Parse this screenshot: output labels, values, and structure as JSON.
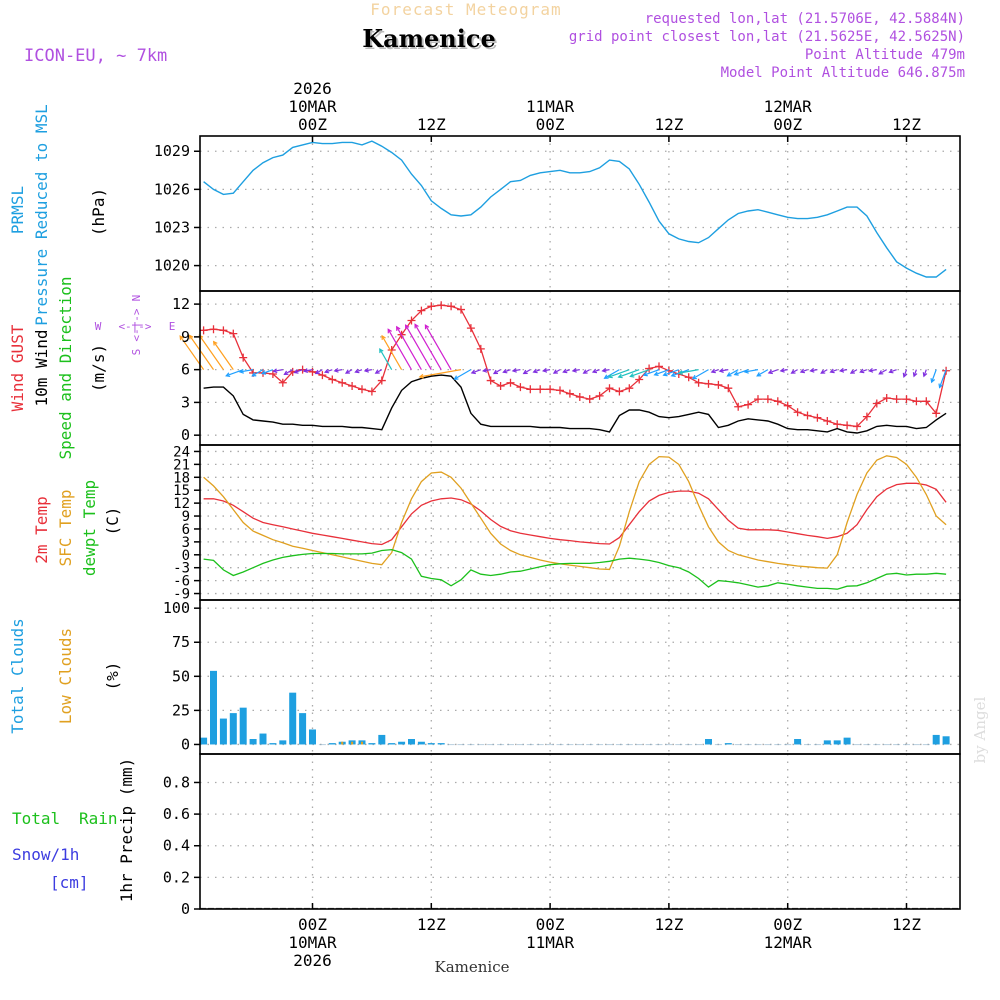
{
  "header": {
    "subtitle": "Forecast Meteogram",
    "title": "Kamenice",
    "model": "ICON-EU, ~ 7km",
    "requested": "requested lon,lat (21.5706E, 42.5884N)",
    "grid_point": "grid point closest lon,lat (21.5625E, 42.5625N)",
    "point_altitude": "Point Altitude 479m",
    "model_altitude": "Model Point Altitude 646.875m",
    "credit": "by Angel",
    "bottom_label": "Kamenice"
  },
  "time_axis": {
    "top": [
      {
        "t": 0,
        "lines": [
          "2026",
          "10MAR",
          "00Z"
        ]
      },
      {
        "t": 12,
        "lines": [
          "12Z"
        ]
      },
      {
        "t": 24,
        "lines": [
          "11MAR",
          "00Z"
        ]
      },
      {
        "t": 36,
        "lines": [
          "12Z"
        ]
      },
      {
        "t": 48,
        "lines": [
          "12MAR",
          "00Z"
        ]
      },
      {
        "t": 60,
        "lines": [
          "12Z"
        ]
      }
    ],
    "bottom": [
      {
        "t": 0,
        "lines": [
          "00Z",
          "10MAR",
          "2026"
        ]
      },
      {
        "t": 12,
        "lines": [
          "12Z"
        ]
      },
      {
        "t": 24,
        "lines": [
          "00Z",
          "11MAR"
        ]
      },
      {
        "t": 36,
        "lines": [
          "12Z"
        ]
      },
      {
        "t": 48,
        "lines": [
          "00Z",
          "12MAR"
        ]
      },
      {
        "t": 60,
        "lines": [
          "12Z"
        ]
      }
    ]
  },
  "panels": {
    "pressure": {
      "labels": [
        "PRMSL",
        "Pressure Reduced to MSL"
      ],
      "unit": "(hPa)",
      "line_color": "#1e9fe0"
    },
    "wind": {
      "labels": [
        "Wind GUST",
        "10m Wind",
        "Speed and Direction"
      ],
      "unit": "(m/s)",
      "compass": {
        "n": "N",
        "s": "S",
        "w": "W",
        "e": "E"
      },
      "gust_color": "#e8303a",
      "wind_color": "#000000"
    },
    "temp": {
      "labels": [
        "2m Temp",
        "SFC Temp",
        "dewpt Temp"
      ],
      "unit": "(C)",
      "temp_color": "#e8303a",
      "sfc_color": "#e0a020",
      "dew_color": "#1cc01c"
    },
    "clouds": {
      "labels": [
        "Total Clouds",
        "Low Clouds"
      ],
      "unit": "(%)",
      "total_color": "#1e9fe0",
      "low_color": "#e0a020"
    },
    "precip": {
      "labels": [
        "Total",
        "Rain",
        "Snow/1h",
        "[cm]"
      ],
      "ylabel": "1hr Precip (mm)",
      "rain_color": "#1cc01c",
      "snow_color": "#3c3ce0"
    }
  },
  "chart_data": [
    {
      "type": "line",
      "title": "PRMSL Pressure Reduced to MSL",
      "ylabel": "hPa",
      "x_unit": "hours from 10MAR 00Z",
      "ylim": [
        1018,
        1030.2
      ],
      "yticks": [
        1020,
        1023,
        1026,
        1029
      ],
      "x": [
        -11,
        -10,
        -9,
        -8,
        -7,
        -6,
        -5,
        -4,
        -3,
        -2,
        -1,
        0,
        1,
        2,
        3,
        4,
        5,
        6,
        7,
        8,
        9,
        10,
        11,
        12,
        13,
        14,
        15,
        16,
        17,
        18,
        19,
        20,
        21,
        22,
        23,
        24,
        25,
        26,
        27,
        28,
        29,
        30,
        31,
        32,
        33,
        34,
        35,
        36,
        37,
        38,
        39,
        40,
        41,
        42,
        43,
        44,
        45,
        46,
        47,
        48,
        49,
        50,
        51,
        52,
        53,
        54,
        55,
        56,
        57,
        58,
        59,
        60,
        61,
        62,
        63,
        64
      ],
      "series": [
        {
          "name": "PRMSL",
          "values": [
            1026.6,
            1026.0,
            1025.6,
            1025.7,
            1026.6,
            1027.5,
            1028.1,
            1028.5,
            1028.7,
            1029.3,
            1029.5,
            1029.7,
            1029.6,
            1029.6,
            1029.7,
            1029.7,
            1029.5,
            1029.8,
            1029.4,
            1028.9,
            1028.3,
            1027.2,
            1026.3,
            1025.1,
            1024.5,
            1024.0,
            1023.9,
            1024.0,
            1024.6,
            1025.4,
            1026.0,
            1026.6,
            1026.7,
            1027.1,
            1027.3,
            1027.4,
            1027.5,
            1027.3,
            1027.3,
            1027.4,
            1027.7,
            1028.3,
            1028.2,
            1027.6,
            1026.4,
            1025.0,
            1023.5,
            1022.5,
            1022.1,
            1021.9,
            1021.8,
            1022.2,
            1022.9,
            1023.6,
            1024.1,
            1024.3,
            1024.4,
            1024.2,
            1024.0,
            1023.8,
            1023.7,
            1023.7,
            1023.8,
            1024.0,
            1024.3,
            1024.6,
            1024.6,
            1023.9,
            1022.6,
            1021.4,
            1020.3,
            1019.8,
            1019.4,
            1019.1,
            1019.1,
            1019.7
          ]
        }
      ]
    },
    {
      "type": "line",
      "title": "Wind GUST / 10m Wind Speed and Direction",
      "ylabel": "m/s",
      "x_unit": "hours from 10MAR 00Z",
      "ylim": [
        -0.9,
        13.2
      ],
      "yticks": [
        0,
        3,
        6,
        9,
        12
      ],
      "x": [
        -11,
        -10,
        -9,
        -8,
        -7,
        -6,
        -5,
        -4,
        -3,
        -2,
        -1,
        0,
        1,
        2,
        3,
        4,
        5,
        6,
        7,
        8,
        9,
        10,
        11,
        12,
        13,
        14,
        15,
        16,
        17,
        18,
        19,
        20,
        21,
        22,
        23,
        24,
        25,
        26,
        27,
        28,
        29,
        30,
        31,
        32,
        33,
        34,
        35,
        36,
        37,
        38,
        39,
        40,
        41,
        42,
        43,
        44,
        45,
        46,
        47,
        48,
        49,
        50,
        51,
        52,
        53,
        54,
        55,
        56,
        57,
        58,
        59,
        60,
        61,
        62,
        63,
        64
      ],
      "series": [
        {
          "name": "Wind GUST",
          "values": [
            9.6,
            9.7,
            9.6,
            9.3,
            7.1,
            5.7,
            5.7,
            5.6,
            4.8,
            5.8,
            6.0,
            5.8,
            5.5,
            5.1,
            4.8,
            4.5,
            4.2,
            4.0,
            5.0,
            7.8,
            9.2,
            10.5,
            11.4,
            11.8,
            11.9,
            11.8,
            11.5,
            9.8,
            7.9,
            5.0,
            4.5,
            4.8,
            4.4,
            4.2,
            4.2,
            4.2,
            4.1,
            3.8,
            3.5,
            3.3,
            3.6,
            4.3,
            4.0,
            4.3,
            5.1,
            6.1,
            6.3,
            5.9,
            5.6,
            5.3,
            4.8,
            4.7,
            4.6,
            4.3,
            2.6,
            2.8,
            3.3,
            3.3,
            3.1,
            2.7,
            2.1,
            1.8,
            1.6,
            1.3,
            1.0,
            0.9,
            0.8,
            1.7,
            2.9,
            3.4,
            3.3,
            3.3,
            3.1,
            3.1,
            2.0,
            5.9
          ]
        },
        {
          "name": "10m Wind",
          "values": [
            4.3,
            4.4,
            4.4,
            3.6,
            1.9,
            1.4,
            1.3,
            1.2,
            1.0,
            1.0,
            0.9,
            0.9,
            0.8,
            0.8,
            0.8,
            0.7,
            0.7,
            0.6,
            0.5,
            2.5,
            4.1,
            4.9,
            5.2,
            5.4,
            5.5,
            5.4,
            4.4,
            2.0,
            1.0,
            0.8,
            0.8,
            0.8,
            0.8,
            0.8,
            0.7,
            0.7,
            0.7,
            0.6,
            0.6,
            0.6,
            0.5,
            0.3,
            1.8,
            2.3,
            2.3,
            2.1,
            1.7,
            1.6,
            1.7,
            1.9,
            2.1,
            1.9,
            0.7,
            0.9,
            1.3,
            1.5,
            1.4,
            1.3,
            1.0,
            0.6,
            0.5,
            0.5,
            0.4,
            0.3,
            0.6,
            0.3,
            0.2,
            0.4,
            0.8,
            0.9,
            0.8,
            0.8,
            0.6,
            0.7,
            1.4,
            2.0
          ]
        }
      ]
    },
    {
      "type": "line",
      "title": "2m Temp / SFC Temp / dewpt Temp",
      "ylabel": "C",
      "x_unit": "hours from 10MAR 00Z",
      "ylim": [
        -10.5,
        25.5
      ],
      "yticks": [
        -9,
        -6,
        -3,
        0,
        3,
        6,
        9,
        12,
        15,
        18,
        21,
        24
      ],
      "x": [
        -11,
        -10,
        -9,
        -8,
        -7,
        -6,
        -5,
        -4,
        -3,
        -2,
        -1,
        0,
        1,
        2,
        3,
        4,
        5,
        6,
        7,
        8,
        9,
        10,
        11,
        12,
        13,
        14,
        15,
        16,
        17,
        18,
        19,
        20,
        21,
        22,
        23,
        24,
        25,
        26,
        27,
        28,
        29,
        30,
        31,
        32,
        33,
        34,
        35,
        36,
        37,
        38,
        39,
        40,
        41,
        42,
        43,
        44,
        45,
        46,
        47,
        48,
        49,
        50,
        51,
        52,
        53,
        54,
        55,
        56,
        57,
        58,
        59,
        60,
        61,
        62,
        63,
        64
      ],
      "series": [
        {
          "name": "2m Temp",
          "values": [
            13.0,
            13.0,
            12.5,
            11.5,
            10.0,
            8.5,
            7.5,
            7.0,
            6.5,
            6.0,
            5.5,
            5.0,
            4.6,
            4.2,
            3.8,
            3.4,
            3.0,
            2.6,
            2.4,
            3.5,
            6.5,
            9.5,
            11.5,
            12.5,
            13.0,
            13.2,
            12.8,
            11.8,
            10.2,
            8.2,
            6.6,
            5.6,
            5.0,
            4.6,
            4.2,
            3.8,
            3.5,
            3.3,
            3.0,
            2.8,
            2.6,
            2.5,
            4.0,
            7.0,
            10.0,
            12.5,
            13.8,
            14.5,
            14.8,
            14.8,
            14.3,
            13.0,
            10.5,
            8.0,
            6.2,
            5.8,
            5.8,
            5.8,
            5.7,
            5.3,
            4.9,
            4.5,
            4.2,
            3.8,
            4.2,
            5.0,
            7.0,
            10.5,
            13.5,
            15.3,
            16.3,
            16.6,
            16.6,
            16.2,
            15.2,
            12.2
          ]
        },
        {
          "name": "SFC Temp",
          "values": [
            18.0,
            16.0,
            13.5,
            10.5,
            7.5,
            5.5,
            4.5,
            3.5,
            2.8,
            2.0,
            1.5,
            1.0,
            0.5,
            0.0,
            -0.5,
            -1.0,
            -1.5,
            -2.0,
            -2.3,
            0.5,
            7.5,
            13.0,
            17.0,
            19.0,
            19.2,
            18.0,
            15.5,
            12.0,
            8.5,
            5.0,
            2.5,
            1.0,
            0.0,
            -0.6,
            -1.2,
            -1.7,
            -2.1,
            -2.4,
            -2.7,
            -3.0,
            -3.3,
            -3.4,
            2.0,
            10.0,
            17.0,
            21.0,
            22.8,
            22.7,
            21.0,
            17.0,
            11.5,
            6.5,
            3.0,
            1.0,
            0.0,
            -0.6,
            -1.2,
            -1.6,
            -2.0,
            -2.3,
            -2.6,
            -2.8,
            -3.0,
            -3.1,
            0.0,
            7.5,
            14.0,
            19.0,
            22.0,
            23.0,
            22.6,
            21.0,
            18.0,
            14.0,
            9.0,
            7.0
          ]
        },
        {
          "name": "dewpt Temp",
          "values": [
            -1.0,
            -1.3,
            -3.5,
            -4.8,
            -4.0,
            -3.0,
            -2.0,
            -1.2,
            -0.6,
            -0.2,
            0.1,
            0.3,
            0.3,
            0.3,
            0.2,
            0.2,
            0.2,
            0.4,
            1.0,
            1.2,
            0.5,
            -1.0,
            -5.0,
            -5.5,
            -5.8,
            -7.2,
            -5.8,
            -3.5,
            -4.5,
            -4.8,
            -4.5,
            -4.0,
            -3.8,
            -3.3,
            -2.8,
            -2.3,
            -2.1,
            -2.0,
            -2.0,
            -2.0,
            -1.8,
            -1.5,
            -1.0,
            -0.8,
            -1.0,
            -1.3,
            -1.8,
            -2.5,
            -3.0,
            -4.0,
            -5.5,
            -7.5,
            -6.0,
            -6.2,
            -6.5,
            -7.0,
            -7.5,
            -7.2,
            -6.5,
            -6.8,
            -7.2,
            -7.5,
            -7.8,
            -7.8,
            -8.0,
            -7.3,
            -7.2,
            -6.5,
            -5.5,
            -4.5,
            -4.3,
            -4.7,
            -4.5,
            -4.5,
            -4.3,
            -4.5
          ]
        }
      ],
      "wind_barbs": {
        "speed": "10m Wind",
        "direction_samples": "arrows drawn along 6 m/s line"
      }
    },
    {
      "type": "bar",
      "title": "Total Clouds / Low Clouds",
      "ylabel": "%",
      "x_unit": "hours from 10MAR 00Z",
      "ylim": [
        -7,
        106
      ],
      "yticks": [
        0,
        25,
        50,
        75,
        100
      ],
      "x": [
        -11,
        -10,
        -9,
        -8,
        -7,
        -6,
        -5,
        -4,
        -3,
        -2,
        -1,
        0,
        1,
        2,
        3,
        4,
        5,
        6,
        7,
        8,
        9,
        10,
        11,
        12,
        13,
        14,
        15,
        16,
        17,
        18,
        19,
        20,
        21,
        22,
        23,
        24,
        25,
        26,
        27,
        28,
        29,
        30,
        31,
        32,
        33,
        34,
        35,
        36,
        37,
        38,
        39,
        40,
        41,
        42,
        43,
        44,
        45,
        46,
        47,
        48,
        49,
        50,
        51,
        52,
        53,
        54,
        55,
        56,
        57,
        58,
        59,
        60,
        61,
        62,
        63,
        64
      ],
      "series": [
        {
          "name": "Total Clouds",
          "values": [
            5,
            54,
            19,
            23,
            27,
            4,
            8,
            1,
            3,
            38,
            23,
            11,
            0,
            1,
            2,
            3,
            3,
            1,
            7,
            1,
            2,
            4,
            2,
            1,
            1,
            0,
            0,
            0,
            0,
            0,
            0,
            0,
            0,
            0,
            0,
            0,
            0,
            0,
            0,
            0,
            0,
            0,
            0,
            0,
            0,
            0,
            0,
            0,
            0,
            0,
            0,
            4,
            0,
            1,
            0,
            0,
            0,
            0,
            0,
            0,
            4,
            0,
            0,
            3,
            3,
            5,
            0,
            0,
            0,
            0,
            0,
            0,
            0,
            0,
            7,
            6
          ]
        },
        {
          "name": "Low Clouds",
          "values": [
            0,
            0,
            0,
            0,
            0,
            0,
            0,
            0,
            0,
            0,
            0,
            0,
            0,
            0,
            2,
            2,
            2,
            0,
            0,
            0,
            0,
            0,
            0,
            0,
            0,
            0,
            0,
            0,
            0,
            0,
            0,
            0,
            0,
            0,
            0,
            0,
            0,
            0,
            0,
            0,
            0,
            0,
            0,
            0,
            0,
            0,
            0,
            0,
            0,
            0,
            0,
            0,
            0,
            0,
            0,
            0,
            0,
            0,
            0,
            0,
            0,
            0,
            0,
            0,
            0,
            0,
            0,
            0,
            0,
            0,
            0,
            0,
            0,
            0,
            0,
            0
          ]
        }
      ]
    },
    {
      "type": "bar",
      "title": "1hr Precip",
      "ylabel": "1hr Precip (mm)",
      "x_unit": "hours from 10MAR 00Z",
      "ylim": [
        0,
        0.98
      ],
      "yticks": [
        0,
        0.2,
        0.4,
        0.6,
        0.8
      ],
      "series": [
        {
          "name": "Total Rain",
          "values": []
        },
        {
          "name": "Snow/1h",
          "values": []
        }
      ]
    }
  ]
}
